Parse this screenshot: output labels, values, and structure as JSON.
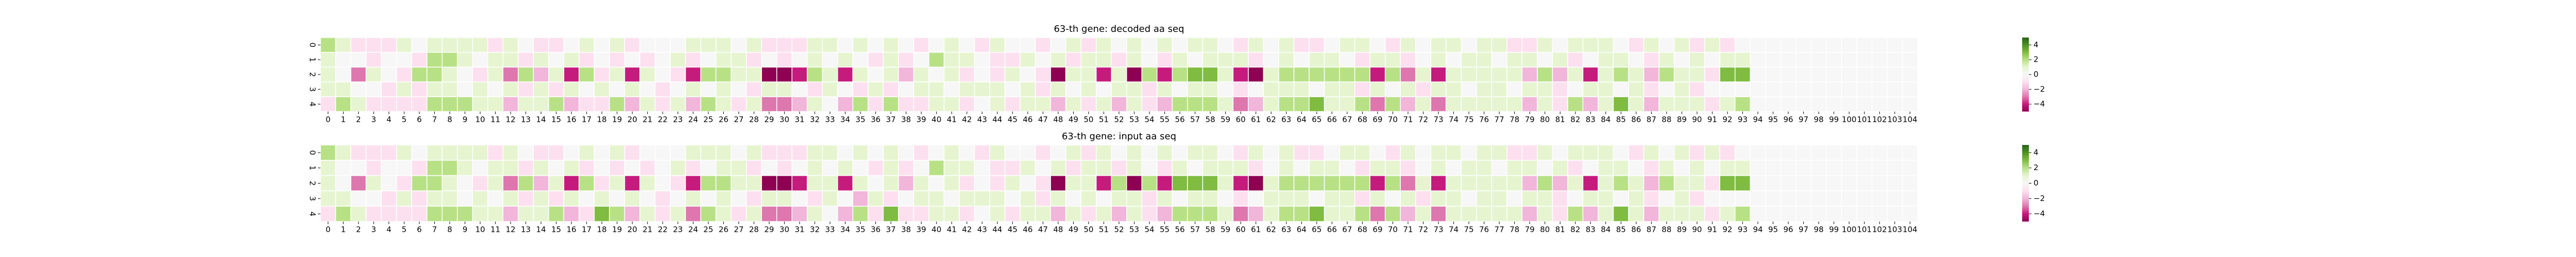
{
  "chart_data": [
    {
      "type": "heatmap",
      "title": "63-th gene: decoded aa seq",
      "categories": [
        "0",
        "1",
        "2",
        "3",
        "4",
        "5",
        "6",
        "7",
        "8",
        "9",
        "10",
        "11",
        "12",
        "13",
        "14",
        "15",
        "16",
        "17",
        "18",
        "19",
        "20",
        "21",
        "22",
        "23",
        "24",
        "25",
        "26",
        "27",
        "28",
        "29",
        "30",
        "31",
        "32",
        "33",
        "34",
        "35",
        "36",
        "37",
        "38",
        "39",
        "40",
        "41",
        "42",
        "43",
        "44",
        "45",
        "46",
        "47",
        "48",
        "49",
        "50",
        "51",
        "52",
        "53",
        "54",
        "55",
        "56",
        "57",
        "58",
        "59",
        "60",
        "61",
        "62",
        "63",
        "64",
        "65",
        "66",
        "67",
        "68",
        "69",
        "70",
        "71",
        "72",
        "73",
        "74",
        "75",
        "76",
        "77",
        "78",
        "79",
        "80",
        "81",
        "82",
        "83",
        "84",
        "85",
        "86",
        "87",
        "88",
        "89",
        "90",
        "91",
        "92",
        "93",
        "94",
        "95",
        "96",
        "97",
        "98",
        "99",
        "100",
        "101",
        "102",
        "103",
        "104"
      ],
      "rows": [
        "0",
        "1",
        "2",
        "3",
        "4"
      ],
      "values": [
        [
          2,
          1,
          -1,
          -1,
          -1,
          1,
          0,
          1,
          1,
          1,
          1,
          -1,
          1,
          0,
          -1,
          -1,
          0,
          1,
          0,
          1,
          -1,
          0,
          0,
          0,
          1,
          1,
          1,
          0,
          1,
          -1,
          -1,
          -1,
          1,
          1,
          0,
          1,
          0,
          1,
          0,
          -1,
          0,
          1,
          0,
          -1,
          1,
          0,
          0,
          -1,
          0,
          1,
          -1,
          1,
          0,
          1,
          0,
          1,
          0,
          1,
          1,
          0,
          -1,
          1,
          0,
          1,
          -1,
          -1,
          0,
          1,
          1,
          0,
          -1,
          1,
          0,
          1,
          1,
          0,
          1,
          1,
          -1,
          -1,
          1,
          0,
          1,
          1,
          1,
          0,
          -1,
          1,
          0,
          1,
          -1,
          1,
          -1,
          0,
          0,
          0,
          0,
          0,
          0,
          0,
          0,
          0,
          0,
          0,
          0
        ],
        [
          1,
          0,
          0,
          -1,
          0,
          0,
          -1,
          2,
          2,
          1,
          0,
          1,
          1,
          -1,
          1,
          0,
          1,
          -1,
          0,
          -1,
          0,
          -1,
          0,
          1,
          -1,
          0,
          1,
          1,
          -1,
          0,
          -1,
          0,
          1,
          0,
          1,
          0,
          -1,
          1,
          -1,
          0,
          2,
          1,
          1,
          0,
          -1,
          -1,
          1,
          0,
          1,
          -1,
          1,
          1,
          -1,
          1,
          0,
          -1,
          1,
          0,
          1,
          1,
          1,
          -1,
          0,
          1,
          0,
          1,
          1,
          0,
          -1,
          1,
          1,
          -1,
          0,
          1,
          0,
          1,
          1,
          0,
          1,
          1,
          0,
          1,
          -1,
          0,
          1,
          1,
          0,
          -1,
          1,
          0,
          1,
          0,
          1,
          1,
          0,
          0,
          0,
          0,
          0,
          0,
          0,
          0,
          0,
          0,
          0
        ],
        [
          1,
          0,
          -3,
          1,
          0,
          -1,
          2,
          2,
          1,
          0,
          -1,
          1,
          -3,
          2,
          -2,
          1,
          -4,
          2,
          -1,
          1,
          -4,
          1,
          0,
          -1,
          -4,
          2,
          2,
          1,
          1,
          -5,
          -5,
          -4,
          2,
          1,
          -4,
          1,
          0,
          1,
          -2,
          1,
          0,
          1,
          -1,
          0,
          -1,
          1,
          0,
          -1,
          -5,
          1,
          1,
          -4,
          1,
          -5,
          2,
          -4,
          2,
          3,
          3,
          1,
          -4,
          -5,
          1,
          2,
          2,
          2,
          2,
          2,
          2,
          -4,
          2,
          -3,
          1,
          -4,
          1,
          1,
          1,
          1,
          1,
          -2,
          2,
          -2,
          1,
          -4,
          1,
          2,
          1,
          -2,
          2,
          1,
          1,
          -1,
          3,
          3,
          0,
          0,
          0,
          0,
          0,
          0,
          0,
          0,
          0,
          0,
          0
        ],
        [
          1,
          1,
          0,
          0,
          -1,
          1,
          -1,
          1,
          1,
          0,
          1,
          0,
          1,
          -1,
          1,
          -1,
          1,
          0,
          1,
          0,
          1,
          0,
          -1,
          0,
          1,
          0,
          1,
          0,
          -1,
          1,
          1,
          0,
          -1,
          1,
          0,
          -1,
          1,
          -1,
          0,
          1,
          1,
          0,
          1,
          1,
          1,
          0,
          1,
          -1,
          1,
          0,
          1,
          0,
          1,
          1,
          -1,
          1,
          0,
          1,
          1,
          0,
          -1,
          0,
          1,
          1,
          1,
          0,
          1,
          1,
          -1,
          1,
          0,
          1,
          -1,
          1,
          1,
          0,
          1,
          1,
          0,
          1,
          1,
          -1,
          0,
          1,
          1,
          0,
          1,
          -1,
          0,
          1,
          -1,
          0,
          0,
          0,
          0,
          0,
          0,
          0,
          0,
          0,
          0,
          0,
          0,
          0,
          0
        ],
        [
          -1,
          2,
          1,
          -1,
          -1,
          -1,
          -1,
          2,
          2,
          2,
          1,
          1,
          -2,
          1,
          1,
          2,
          -2,
          -1,
          -1,
          2,
          -2,
          1,
          -1,
          1,
          -2,
          2,
          1,
          -1,
          1,
          -3,
          -3,
          -2,
          1,
          0,
          -2,
          2,
          -1,
          2,
          -1,
          -1,
          1,
          1,
          -1,
          0,
          1,
          -1,
          1,
          1,
          -2,
          1,
          -1,
          1,
          -2,
          1,
          -1,
          -2,
          2,
          2,
          2,
          1,
          -3,
          -2,
          1,
          2,
          2,
          3,
          1,
          1,
          2,
          -3,
          2,
          -2,
          1,
          -3,
          1,
          1,
          1,
          1,
          1,
          -2,
          1,
          -1,
          2,
          -2,
          1,
          3,
          1,
          -2,
          1,
          1,
          1,
          -1,
          1,
          2,
          0,
          0,
          0,
          0,
          0,
          0,
          0,
          0,
          0,
          0,
          0
        ]
      ],
      "clim": [
        -5,
        5
      ],
      "colors": [
        "#8e0152",
        "#c51b7d",
        "#de77ae",
        "#f1b6da",
        "#fde0ef",
        "#f7f7f7",
        "#e6f5d0",
        "#b8e186",
        "#7fbc41",
        "#4d9221",
        "#276419"
      ],
      "cbar_ticks": [
        {
          "value": -4,
          "label": "−4"
        },
        {
          "value": -2,
          "label": "−2"
        },
        0,
        2,
        4
      ]
    },
    {
      "type": "heatmap",
      "title": "63-th gene: input aa seq",
      "categories": [
        "0",
        "1",
        "2",
        "3",
        "4",
        "5",
        "6",
        "7",
        "8",
        "9",
        "10",
        "11",
        "12",
        "13",
        "14",
        "15",
        "16",
        "17",
        "18",
        "19",
        "20",
        "21",
        "22",
        "23",
        "24",
        "25",
        "26",
        "27",
        "28",
        "29",
        "30",
        "31",
        "32",
        "33",
        "34",
        "35",
        "36",
        "37",
        "38",
        "39",
        "40",
        "41",
        "42",
        "43",
        "44",
        "45",
        "46",
        "47",
        "48",
        "49",
        "50",
        "51",
        "52",
        "53",
        "54",
        "55",
        "56",
        "57",
        "58",
        "59",
        "60",
        "61",
        "62",
        "63",
        "64",
        "65",
        "66",
        "67",
        "68",
        "69",
        "70",
        "71",
        "72",
        "73",
        "74",
        "75",
        "76",
        "77",
        "78",
        "79",
        "80",
        "81",
        "82",
        "83",
        "84",
        "85",
        "86",
        "87",
        "88",
        "89",
        "90",
        "91",
        "92",
        "93",
        "94",
        "95",
        "96",
        "97",
        "98",
        "99",
        "100",
        "101",
        "102",
        "103",
        "104"
      ],
      "rows": [
        "0",
        "1",
        "2",
        "3",
        "4"
      ],
      "values": [
        [
          2,
          1,
          -1,
          -1,
          -1,
          1,
          0,
          1,
          1,
          1,
          1,
          -1,
          1,
          0,
          -1,
          -1,
          0,
          1,
          0,
          1,
          -1,
          0,
          0,
          0,
          1,
          1,
          1,
          0,
          1,
          -1,
          -1,
          -1,
          1,
          1,
          0,
          1,
          0,
          1,
          0,
          -1,
          0,
          1,
          0,
          -1,
          1,
          0,
          0,
          -1,
          0,
          1,
          -1,
          1,
          0,
          1,
          0,
          1,
          0,
          1,
          1,
          0,
          -1,
          1,
          0,
          1,
          -1,
          -1,
          0,
          1,
          1,
          0,
          -1,
          1,
          0,
          1,
          1,
          0,
          1,
          1,
          -1,
          -1,
          1,
          0,
          1,
          1,
          1,
          0,
          -1,
          1,
          0,
          1,
          -1,
          1,
          -1,
          0,
          0,
          0,
          0,
          0,
          0,
          0,
          0,
          0,
          0,
          0,
          0
        ],
        [
          1,
          0,
          0,
          -1,
          0,
          0,
          -1,
          2,
          2,
          1,
          0,
          1,
          1,
          -1,
          1,
          0,
          1,
          -1,
          0,
          -1,
          0,
          -1,
          0,
          1,
          -1,
          0,
          1,
          1,
          -1,
          0,
          -1,
          0,
          1,
          0,
          1,
          0,
          -1,
          1,
          -1,
          0,
          2,
          1,
          1,
          0,
          -1,
          -1,
          1,
          0,
          1,
          -1,
          1,
          1,
          -1,
          1,
          0,
          -1,
          1,
          0,
          1,
          1,
          1,
          -1,
          0,
          1,
          0,
          1,
          1,
          0,
          -1,
          1,
          1,
          -1,
          0,
          1,
          0,
          1,
          1,
          0,
          1,
          1,
          0,
          1,
          -1,
          0,
          1,
          1,
          0,
          -1,
          1,
          0,
          1,
          0,
          1,
          1,
          0,
          0,
          0,
          0,
          0,
          0,
          0,
          0,
          0,
          0,
          0
        ],
        [
          1,
          0,
          -3,
          1,
          0,
          -1,
          2,
          2,
          1,
          0,
          -1,
          1,
          -3,
          2,
          -2,
          1,
          -4,
          2,
          -1,
          1,
          -4,
          1,
          0,
          -1,
          -4,
          2,
          2,
          1,
          1,
          -5,
          -5,
          -4,
          1,
          1,
          -4,
          1,
          0,
          1,
          -2,
          1,
          0,
          1,
          -1,
          0,
          -1,
          1,
          0,
          -1,
          -5,
          1,
          1,
          -4,
          2,
          -5,
          2,
          -4,
          3,
          3,
          3,
          1,
          -4,
          -5,
          1,
          2,
          2,
          2,
          2,
          2,
          2,
          -4,
          2,
          -3,
          1,
          -4,
          1,
          1,
          1,
          1,
          1,
          -2,
          2,
          -2,
          1,
          -4,
          1,
          2,
          1,
          -2,
          2,
          1,
          1,
          -1,
          3,
          3,
          0,
          0,
          0,
          0,
          0,
          0,
          0,
          0,
          0,
          0,
          0
        ],
        [
          1,
          1,
          0,
          0,
          -1,
          1,
          -1,
          1,
          1,
          0,
          1,
          0,
          1,
          -1,
          1,
          -1,
          1,
          0,
          1,
          0,
          1,
          0,
          -1,
          0,
          1,
          0,
          1,
          0,
          -1,
          1,
          1,
          0,
          -1,
          1,
          0,
          -2,
          1,
          -1,
          0,
          1,
          1,
          0,
          1,
          1,
          1,
          0,
          1,
          -1,
          1,
          0,
          1,
          0,
          1,
          1,
          -1,
          1,
          0,
          1,
          1,
          0,
          -1,
          0,
          1,
          1,
          1,
          0,
          1,
          1,
          -1,
          1,
          0,
          1,
          -1,
          1,
          1,
          0,
          1,
          1,
          0,
          1,
          1,
          -1,
          0,
          1,
          1,
          0,
          1,
          -1,
          0,
          1,
          -1,
          0,
          0,
          0,
          0,
          0,
          0,
          0,
          0,
          0,
          0,
          0,
          0,
          0,
          0
        ],
        [
          -1,
          2,
          1,
          -1,
          -1,
          -1,
          -1,
          2,
          2,
          2,
          1,
          1,
          -2,
          1,
          1,
          2,
          -2,
          -1,
          3,
          2,
          -2,
          1,
          -1,
          1,
          -3,
          2,
          1,
          -1,
          1,
          -3,
          -3,
          -2,
          1,
          0,
          -2,
          2,
          -1,
          3,
          -1,
          -1,
          1,
          1,
          -1,
          0,
          1,
          -1,
          1,
          1,
          -2,
          1,
          -1,
          1,
          -2,
          1,
          -1,
          -2,
          2,
          2,
          2,
          1,
          -3,
          -2,
          1,
          2,
          2,
          3,
          1,
          1,
          2,
          -3,
          2,
          -2,
          1,
          -3,
          1,
          1,
          1,
          1,
          1,
          -2,
          1,
          -1,
          2,
          -2,
          1,
          3,
          1,
          -2,
          1,
          1,
          1,
          -1,
          1,
          2,
          0,
          0,
          0,
          0,
          0,
          0,
          0,
          0,
          0,
          0,
          0
        ]
      ],
      "clim": [
        -5,
        5
      ],
      "colors": [
        "#8e0152",
        "#c51b7d",
        "#de77ae",
        "#f1b6da",
        "#fde0ef",
        "#f7f7f7",
        "#e6f5d0",
        "#b8e186",
        "#7fbc41",
        "#4d9221",
        "#276419"
      ],
      "cbar_ticks": [
        {
          "value": -4,
          "label": "−4"
        },
        {
          "value": -2,
          "label": "−2"
        },
        0,
        2,
        4
      ]
    }
  ]
}
